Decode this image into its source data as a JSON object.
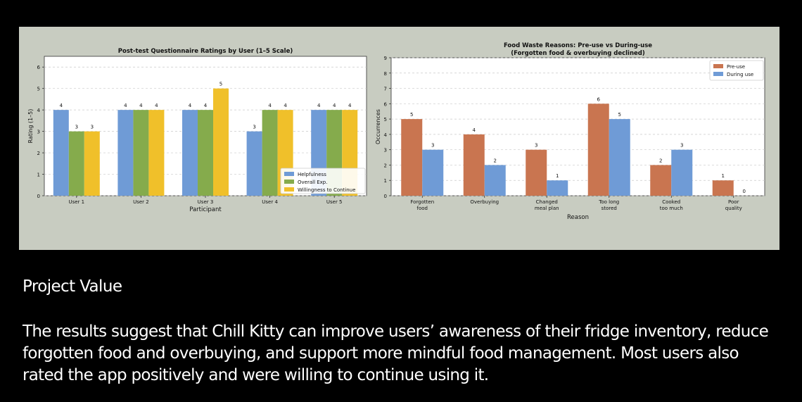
{
  "colors": {
    "helpfulness": "#6f9bd6",
    "overall": "#85ab4c",
    "willingness": "#f0c02a",
    "pre_use": "#c97550",
    "during_use": "#6f9bd6"
  },
  "chart_data": [
    {
      "type": "bar",
      "title": "Post-test Questionnaire Ratings by User (1–5 Scale)",
      "xlabel": "Participant",
      "ylabel": "Rating (1–5)",
      "categories": [
        "User 1",
        "User 2",
        "User 3",
        "User 4",
        "User 5"
      ],
      "series": [
        {
          "name": "Helpfulness",
          "values": [
            4,
            4,
            4,
            3,
            4
          ]
        },
        {
          "name": "Overall Exp.",
          "values": [
            3,
            4,
            4,
            4,
            4
          ]
        },
        {
          "name": "Willingness to Continue",
          "values": [
            3,
            4,
            5,
            4,
            4
          ]
        }
      ],
      "ylim": [
        0,
        6.5
      ],
      "yticks": [
        "0",
        "1",
        "2",
        "3",
        "4",
        "5",
        "6"
      ],
      "grid": true,
      "legend": "bottom-right"
    },
    {
      "type": "bar",
      "title": "Food Waste Reasons: Pre-use vs During-use",
      "subtitle": "(Forgotten food & overbuying declined)",
      "xlabel": "Reason",
      "ylabel": "Occurrences",
      "categories": [
        [
          "Forgotten",
          "food"
        ],
        [
          "Overbuying"
        ],
        [
          "Changed",
          "meal plan"
        ],
        [
          "Too long",
          "stored"
        ],
        [
          "Cooked",
          "too much"
        ],
        [
          "Poor",
          "quality"
        ]
      ],
      "series": [
        {
          "name": "Pre-use",
          "values": [
            5,
            4,
            3,
            6,
            2,
            1
          ]
        },
        {
          "name": "During use",
          "values": [
            3,
            2,
            1,
            5,
            3,
            0
          ]
        }
      ],
      "ylim": [
        0,
        9
      ],
      "yticks": [
        "0",
        "1",
        "2",
        "3",
        "4",
        "5",
        "6",
        "7",
        "8",
        "9"
      ],
      "grid": true,
      "legend": "top-right"
    }
  ],
  "text": {
    "heading": "Project Value",
    "body": "The results suggest that Chill Kitty can improve users’ awareness of their fridge inventory, reduce forgotten food and overbuying, and support more mindful food management. Most users also rated the app positively and were willing to continue using it."
  }
}
